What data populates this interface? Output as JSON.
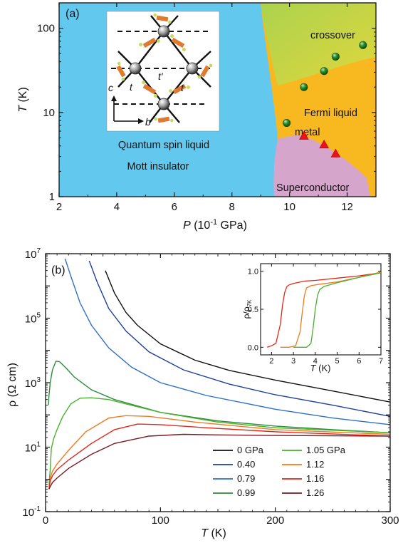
{
  "chart_data": [
    {
      "panel": "(a)",
      "type": "scatter",
      "xlabel_italic": "P",
      "xlabel_rest": " (10",
      "xlabel_sup": "-1",
      "xlabel_tail": " GPa)",
      "ylabel": "T",
      "ylabel_unit": " (K)",
      "xlim": [
        2,
        13
      ],
      "ylim": [
        1,
        200
      ],
      "yscale": "log",
      "x_ticks": [
        "2",
        "4",
        "6",
        "8",
        "10",
        "12"
      ],
      "y_ticks": [
        "1",
        "10",
        "100"
      ],
      "regions": {
        "spin_liquid": "Quantum spin liquid",
        "mott": "Mott insulator",
        "crossover": "crossover",
        "fermi": "Fermi liquid",
        "metal": "metal",
        "superconductor": "Superconductor"
      },
      "region_colors": {
        "insulator": "#62c8ee",
        "crossover": "#b8d84c",
        "metal": "#f8b820",
        "superconductor": "#d6a5cc"
      },
      "inset_labels": {
        "t": "t",
        "t_prime": "t'",
        "c_axis": "c",
        "b_axis": "b"
      },
      "series": [
        {
          "marker": "green-circle",
          "x": [
            9.9,
            10.5,
            11.2,
            11.6,
            12.55
          ],
          "y": [
            7.5,
            20,
            31,
            46,
            63
          ]
        },
        {
          "marker": "red-triangle",
          "x": [
            10.5,
            11.2,
            11.6
          ],
          "y": [
            5.2,
            4.1,
            3.2
          ]
        }
      ]
    },
    {
      "panel": "(b)",
      "type": "line",
      "xlabel": "T",
      "xlabel_unit": " (K)",
      "ylabel": "ρ (Ω cm)",
      "xlim": [
        0,
        300
      ],
      "ylim": [
        0.1,
        10000000
      ],
      "yscale": "log",
      "x_ticks": [
        "0",
        "100",
        "200",
        "300"
      ],
      "y_ticks": [
        {
          "base": "10",
          "exp": "-1"
        },
        {
          "base": "10",
          "exp": "1"
        },
        {
          "base": "10",
          "exp": "3"
        },
        {
          "base": "10",
          "exp": "5"
        },
        {
          "base": "10",
          "exp": "7"
        }
      ],
      "series": [
        {
          "name": "0 GPa",
          "color": "#111111",
          "x": [
            52,
            60,
            70,
            80,
            100,
            130,
            160,
            200,
            250,
            300
          ],
          "y": [
            3000000,
            600000,
            150000,
            60000,
            16000,
            5000,
            2400,
            1200,
            550,
            250
          ]
        },
        {
          "name": "0.40",
          "color": "#1f3f9a",
          "x": [
            38,
            45,
            55,
            70,
            90,
            120,
            160,
            200,
            250,
            300
          ],
          "y": [
            6000000,
            1300000,
            200000,
            40000,
            9000,
            2500,
            900,
            420,
            200,
            90
          ]
        },
        {
          "name": "0.79",
          "color": "#2f6fc8",
          "x": [
            17,
            22,
            30,
            40,
            55,
            75,
            100,
            140,
            200,
            250,
            300
          ],
          "y": [
            7000000,
            2000000,
            300000,
            60000,
            12000,
            3000,
            1000,
            400,
            150,
            80,
            50
          ]
        },
        {
          "name": "0.99",
          "color": "#2c8c38",
          "x": [
            2.5,
            3,
            4,
            6,
            9,
            12,
            18,
            25,
            40,
            60,
            100,
            150,
            200,
            250,
            300
          ],
          "y": [
            200,
            400,
            1000,
            2500,
            4600,
            4500,
            2800,
            1500,
            600,
            300,
            120,
            65,
            45,
            35,
            28
          ]
        },
        {
          "name": "1.05 GPa",
          "color": "#49b02f",
          "x": [
            3,
            4,
            5,
            7,
            10,
            15,
            22,
            30,
            40,
            55,
            70,
            100,
            150,
            200,
            300
          ],
          "y": [
            0.7,
            2,
            9,
            18,
            35,
            90,
            220,
            330,
            340,
            300,
            220,
            120,
            60,
            40,
            28
          ]
        },
        {
          "name": "1.12",
          "color": "#f07a1c",
          "x": [
            3,
            4,
            6,
            10,
            20,
            35,
            55,
            70,
            90,
            130,
            200,
            300
          ],
          "y": [
            0.6,
            1.1,
            1.8,
            3,
            8,
            30,
            80,
            95,
            90,
            60,
            35,
            25
          ]
        },
        {
          "name": "1.16",
          "color": "#e02818",
          "x": [
            3,
            4,
            6,
            10,
            20,
            40,
            60,
            80,
            100,
            140,
            200,
            300
          ],
          "y": [
            0.5,
            0.9,
            1.3,
            2,
            4,
            13,
            35,
            52,
            50,
            40,
            30,
            22
          ]
        },
        {
          "name": "1.26",
          "color": "#7a1a22",
          "x": [
            3,
            4,
            6,
            10,
            20,
            40,
            60,
            90,
            120,
            150,
            200,
            300
          ],
          "y": [
            0.5,
            0.6,
            0.8,
            1.1,
            2.2,
            6,
            13,
            22,
            25,
            24,
            23,
            22
          ]
        }
      ],
      "inset": {
        "type": "line",
        "xlabel": "T",
        "xlabel_unit": " (K)",
        "ylabel": "ρ/ρ",
        "ylabel_sub": "7K",
        "xlim": [
          1.5,
          7
        ],
        "ylim": [
          -0.1,
          1.1
        ],
        "x_ticks": [
          "2",
          "3",
          "4",
          "5",
          "6",
          "7"
        ],
        "y_ticks": [
          "0.0",
          "0.5",
          "1.0"
        ],
        "series": [
          {
            "color": "#e02818",
            "x": [
              1.8,
              2.0,
              2.2,
              2.4,
              2.5,
              2.6,
              2.7,
              2.8,
              3.0,
              3.5,
              4,
              5,
              6,
              7
            ],
            "y": [
              0.0,
              0.02,
              0.05,
              0.3,
              0.55,
              0.72,
              0.8,
              0.82,
              0.84,
              0.87,
              0.88,
              0.91,
              0.94,
              0.98
            ]
          },
          {
            "color": "#f07a1c",
            "x": [
              2.4,
              2.8,
              3.1,
              3.3,
              3.4,
              3.5,
              3.6,
              3.8,
              4.2,
              5,
              6,
              7
            ],
            "y": [
              0.0,
              0.0,
              0.02,
              0.2,
              0.45,
              0.68,
              0.78,
              0.81,
              0.83,
              0.86,
              0.92,
              0.99
            ]
          },
          {
            "color": "#49b02f",
            "x": [
              3.0,
              3.6,
              3.8,
              3.9,
              4.0,
              4.1,
              4.2,
              4.4,
              5,
              6,
              7
            ],
            "y": [
              0.0,
              0.0,
              0.05,
              0.25,
              0.5,
              0.68,
              0.76,
              0.8,
              0.85,
              0.92,
              0.98
            ]
          }
        ]
      }
    }
  ]
}
